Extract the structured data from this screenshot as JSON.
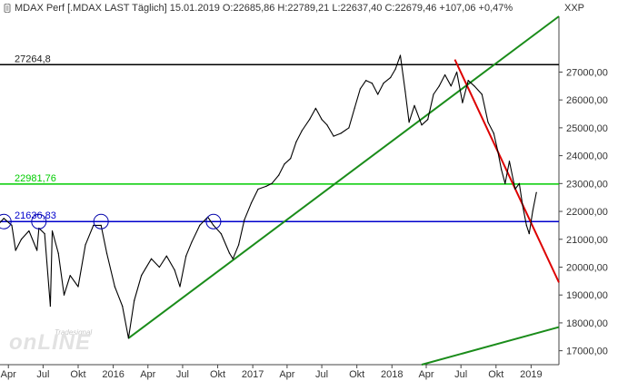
{
  "header": {
    "text": "MDAX Perf [.MDAX LAST Täglich]  15.01.2019  O:22685,86  H:22789,21  L:22637,40  C:22679,46  +107,06  +0,47%",
    "currency": "XXP",
    "icon": "chart-menu-icon"
  },
  "watermark": {
    "brand": "onLINE",
    "sub": "Tradesignal"
  },
  "colors": {
    "price": "#000000",
    "resistance": "#000000",
    "level_green": "#00cc00",
    "support": "#0000cc",
    "trend_green": "#1a8c1a",
    "trend_red": "#dd0000",
    "circle": "#0000aa",
    "axis_text": "#333333"
  },
  "chart_data": {
    "type": "line",
    "title": "MDAX Perf [.MDAX LAST Täglich]",
    "ylim": [
      16500,
      29000
    ],
    "x_range": [
      "2015-03-10",
      "2019-03-15"
    ],
    "yticks": [
      17000,
      18000,
      19000,
      20000,
      21000,
      22000,
      23000,
      24000,
      25000,
      26000,
      27000
    ],
    "ytick_labels": [
      "17000,00",
      "18000,00",
      "19000,00",
      "20000,00",
      "21000,00",
      "22000,00",
      "23000,00",
      "24000,00",
      "25000,00",
      "26000,00",
      "27000,00"
    ],
    "xticks": [
      {
        "date": "2015-04-01",
        "label": "Apr"
      },
      {
        "date": "2015-07-01",
        "label": "Jul"
      },
      {
        "date": "2015-10-01",
        "label": "Okt"
      },
      {
        "date": "2016-01-01",
        "label": "2016"
      },
      {
        "date": "2016-04-01",
        "label": "Apr"
      },
      {
        "date": "2016-07-01",
        "label": "Jul"
      },
      {
        "date": "2016-10-01",
        "label": "Okt"
      },
      {
        "date": "2017-01-01",
        "label": "2017"
      },
      {
        "date": "2017-04-01",
        "label": "Apr"
      },
      {
        "date": "2017-07-01",
        "label": "Jul"
      },
      {
        "date": "2017-10-01",
        "label": "Okt"
      },
      {
        "date": "2018-01-01",
        "label": "2018"
      },
      {
        "date": "2018-04-01",
        "label": "Apr"
      },
      {
        "date": "2018-07-01",
        "label": "Jul"
      },
      {
        "date": "2018-10-01",
        "label": "Okt"
      },
      {
        "date": "2019-01-01",
        "label": "2019"
      }
    ],
    "horizontal_lines": [
      {
        "value": 27264.8,
        "label": "27264,8",
        "color": "#000000"
      },
      {
        "value": 22981.76,
        "label": "22981,76",
        "color": "#00cc00"
      },
      {
        "value": 21636.83,
        "label": "21636,83",
        "color": "#0000cc"
      }
    ],
    "trend_lines": [
      {
        "color": "#1a8c1a",
        "from": {
          "date": "2016-02-10",
          "value": 17450
        },
        "to": {
          "date": "2019-03-15",
          "value": 29000
        }
      },
      {
        "color": "#1a8c1a",
        "from": {
          "date": "2018-03-20",
          "value": 16500
        },
        "to": {
          "date": "2019-03-15",
          "value": 17850
        }
      },
      {
        "color": "#dd0000",
        "from": {
          "date": "2018-06-15",
          "value": 27450
        },
        "to": {
          "date": "2019-03-15",
          "value": 19450
        }
      }
    ],
    "circles": [
      {
        "date": "2015-03-20",
        "value": 21636
      },
      {
        "date": "2015-06-20",
        "value": 21636
      },
      {
        "date": "2015-11-30",
        "value": 21636
      },
      {
        "date": "2016-09-20",
        "value": 21636
      }
    ],
    "series": [
      {
        "points": [
          [
            "2015-03-10",
            21600
          ],
          [
            "2015-03-20",
            21750
          ],
          [
            "2015-04-10",
            21500
          ],
          [
            "2015-04-20",
            20600
          ],
          [
            "2015-05-05",
            21000
          ],
          [
            "2015-05-25",
            21300
          ],
          [
            "2015-06-15",
            20600
          ],
          [
            "2015-06-20",
            21400
          ],
          [
            "2015-07-05",
            21200
          ],
          [
            "2015-07-20",
            18600
          ],
          [
            "2015-07-25",
            21300
          ],
          [
            "2015-08-10",
            20500
          ],
          [
            "2015-08-25",
            19000
          ],
          [
            "2015-09-10",
            19700
          ],
          [
            "2015-10-01",
            19300
          ],
          [
            "2015-10-20",
            20800
          ],
          [
            "2015-11-10",
            21500
          ],
          [
            "2015-11-30",
            21500
          ],
          [
            "2015-12-15",
            20500
          ],
          [
            "2016-01-05",
            19300
          ],
          [
            "2016-01-25",
            18600
          ],
          [
            "2016-02-10",
            17450
          ],
          [
            "2016-02-25",
            18800
          ],
          [
            "2016-03-15",
            19700
          ],
          [
            "2016-04-10",
            20300
          ],
          [
            "2016-05-01",
            20000
          ],
          [
            "2016-05-20",
            20400
          ],
          [
            "2016-06-10",
            19900
          ],
          [
            "2016-06-24",
            19300
          ],
          [
            "2016-07-10",
            20400
          ],
          [
            "2016-07-25",
            20900
          ],
          [
            "2016-08-15",
            21500
          ],
          [
            "2016-09-05",
            21800
          ],
          [
            "2016-09-20",
            21500
          ],
          [
            "2016-10-10",
            21200
          ],
          [
            "2016-11-01",
            20500
          ],
          [
            "2016-11-10",
            20300
          ],
          [
            "2016-11-25",
            20800
          ],
          [
            "2016-12-10",
            21700
          ],
          [
            "2016-12-28",
            22300
          ],
          [
            "2017-01-15",
            22800
          ],
          [
            "2017-02-05",
            22900
          ],
          [
            "2017-02-20",
            23000
          ],
          [
            "2017-03-10",
            23300
          ],
          [
            "2017-03-25",
            23700
          ],
          [
            "2017-04-10",
            23900
          ],
          [
            "2017-04-25",
            24500
          ],
          [
            "2017-05-10",
            24900
          ],
          [
            "2017-05-30",
            25300
          ],
          [
            "2017-06-15",
            25700
          ],
          [
            "2017-07-01",
            25300
          ],
          [
            "2017-07-15",
            25100
          ],
          [
            "2017-08-01",
            24700
          ],
          [
            "2017-08-20",
            24800
          ],
          [
            "2017-09-10",
            25000
          ],
          [
            "2017-09-25",
            25700
          ],
          [
            "2017-10-10",
            26400
          ],
          [
            "2017-10-25",
            26700
          ],
          [
            "2017-11-10",
            26600
          ],
          [
            "2017-11-25",
            26200
          ],
          [
            "2017-12-10",
            26600
          ],
          [
            "2017-12-28",
            26800
          ],
          [
            "2018-01-10",
            27100
          ],
          [
            "2018-01-23",
            27600
          ],
          [
            "2018-02-05",
            26300
          ],
          [
            "2018-02-15",
            25200
          ],
          [
            "2018-03-01",
            25800
          ],
          [
            "2018-03-20",
            25100
          ],
          [
            "2018-04-05",
            25300
          ],
          [
            "2018-04-20",
            26200
          ],
          [
            "2018-05-05",
            26500
          ],
          [
            "2018-05-20",
            26900
          ],
          [
            "2018-06-05",
            26500
          ],
          [
            "2018-06-20",
            27000
          ],
          [
            "2018-07-05",
            25900
          ],
          [
            "2018-07-20",
            26700
          ],
          [
            "2018-08-05",
            26500
          ],
          [
            "2018-08-25",
            26200
          ],
          [
            "2018-09-10",
            25200
          ],
          [
            "2018-09-25",
            24800
          ],
          [
            "2018-10-05",
            24200
          ],
          [
            "2018-10-15",
            23500
          ],
          [
            "2018-10-25",
            23000
          ],
          [
            "2018-11-05",
            23800
          ],
          [
            "2018-11-20",
            22800
          ],
          [
            "2018-12-01",
            23000
          ],
          [
            "2018-12-10",
            22200
          ],
          [
            "2018-12-20",
            21500
          ],
          [
            "2018-12-27",
            21200
          ],
          [
            "2019-01-05",
            22000
          ],
          [
            "2019-01-15",
            22679
          ]
        ]
      }
    ]
  }
}
